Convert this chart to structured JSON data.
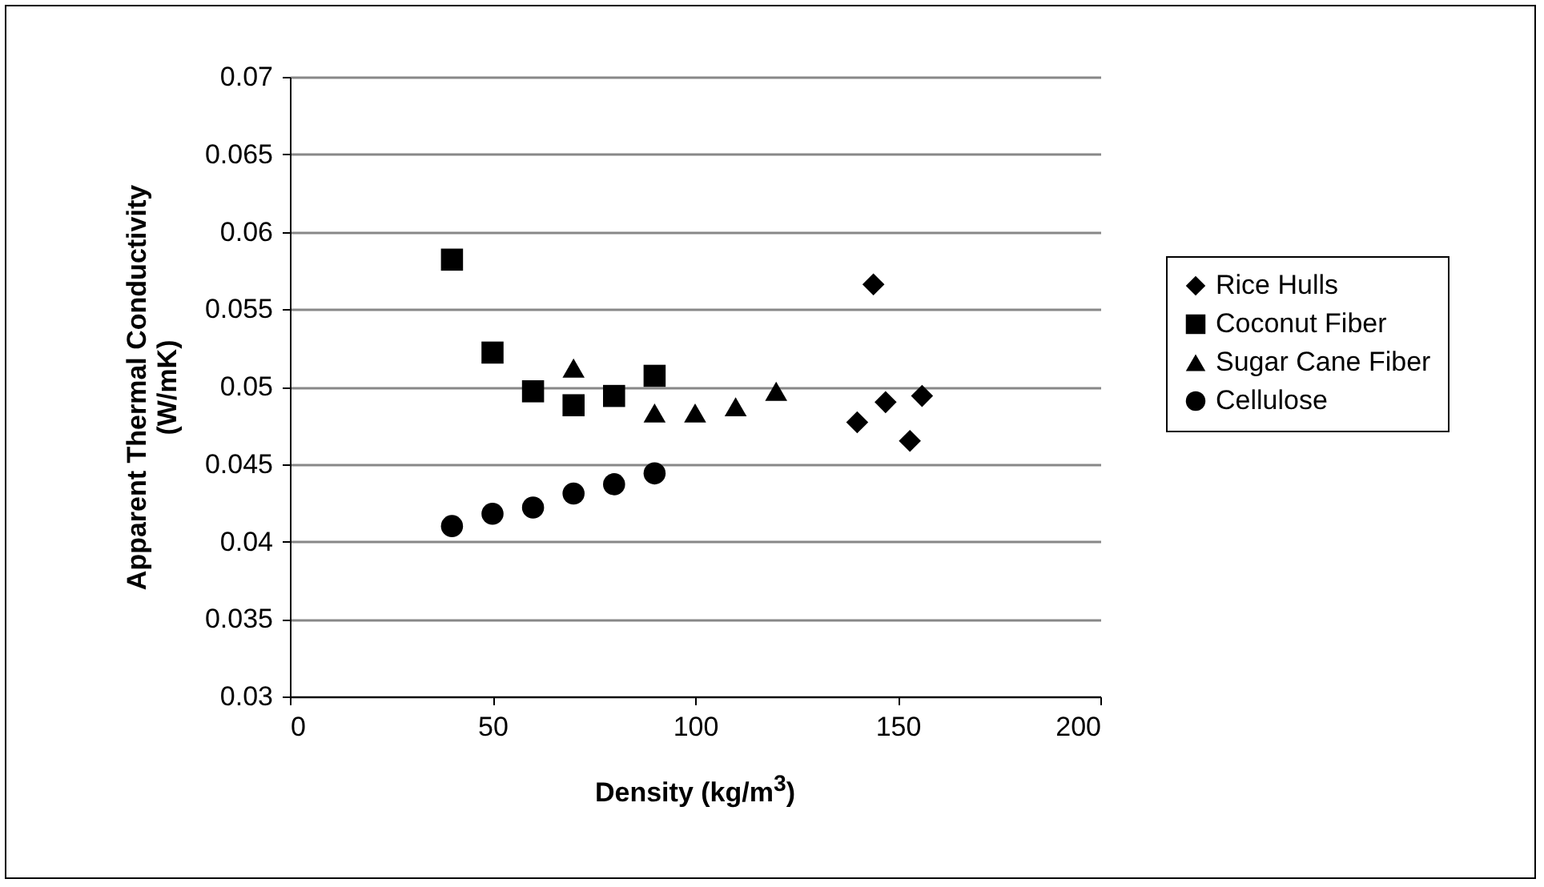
{
  "chart_data": {
    "type": "scatter",
    "xlabel": "Density (kg/m$^{3}$)",
    "ylabel": "Apparent Thermal Conductivity (W/mK)",
    "xlim": [
      0,
      200
    ],
    "xticks": [
      0,
      50,
      100,
      150,
      200
    ],
    "ylim": [
      0.03,
      0.07
    ],
    "yticks": [
      0.03,
      0.035,
      0.04,
      0.045,
      0.05,
      0.055,
      0.06,
      0.065,
      0.07
    ],
    "grid": "y",
    "legend": "right",
    "series": [
      {
        "name": "Rice Hulls",
        "color": "#000000",
        "marker": "diamond",
        "x": [
          140,
          144,
          147,
          153,
          156
        ],
        "values": [
          0.0477,
          0.0566,
          0.049,
          0.0465,
          0.0494
        ]
      },
      {
        "name": "Coconut Fiber",
        "color": "#000000",
        "marker": "square",
        "x": [
          40,
          50,
          60,
          70,
          80,
          90
        ],
        "values": [
          0.0582,
          0.0522,
          0.0497,
          0.0488,
          0.0494,
          0.0507
        ]
      },
      {
        "name": "Sugar Cane Fiber",
        "color": "#000000",
        "marker": "triangle",
        "x": [
          70,
          90,
          100,
          110,
          120
        ],
        "values": [
          0.0512,
          0.0483,
          0.0483,
          0.0487,
          0.0497
        ]
      },
      {
        "name": "Cellulose",
        "color": "#000000",
        "marker": "circle",
        "x": [
          40,
          50,
          60,
          70,
          80,
          90
        ],
        "values": [
          0.041,
          0.0418,
          0.0422,
          0.0431,
          0.0437,
          0.0444
        ]
      }
    ]
  }
}
